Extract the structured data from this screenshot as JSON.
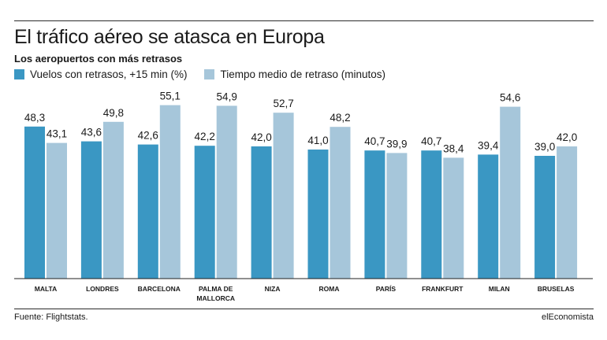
{
  "title": "El tráfico aéreo se atasca en Europa",
  "subtitle": "Los aeropuertos con más retrasos",
  "source": "Fuente: Flightstats.",
  "brand": "elEconomista",
  "colors": {
    "series1": "#3a97c3",
    "series2": "#a6c6da",
    "axis": "#222222"
  },
  "chart_data": {
    "type": "bar",
    "categories": [
      [
        "MALTA"
      ],
      [
        "LONDRES"
      ],
      [
        "BARCELONA"
      ],
      [
        "PALMA DE",
        "MALLORCA"
      ],
      [
        "NIZA"
      ],
      [
        "ROMA"
      ],
      [
        "PARÍS"
      ],
      [
        "FRANKFURT"
      ],
      [
        "MILAN"
      ],
      [
        "BRUSELAS"
      ]
    ],
    "series": [
      {
        "name": "Vuelos con retrasos, +15 min (%)",
        "values": [
          48.3,
          43.6,
          42.6,
          42.2,
          42.0,
          41.0,
          40.7,
          40.7,
          39.4,
          39.0
        ],
        "labels": [
          "48,3",
          "43,6",
          "42,6",
          "42,2",
          "42,0",
          "41,0",
          "40,7",
          "40,7",
          "39,4",
          "39,0"
        ]
      },
      {
        "name": "Tiempo medio de retraso (minutos)",
        "values": [
          43.1,
          49.8,
          55.1,
          54.9,
          52.7,
          48.2,
          39.9,
          38.4,
          54.6,
          42.0
        ],
        "labels": [
          "43,1",
          "49,8",
          "55,1",
          "54,9",
          "52,7",
          "48,2",
          "39,9",
          "38,4",
          "54,6",
          "42,0"
        ]
      }
    ],
    "ylim": [
      0,
      58
    ],
    "grid": false,
    "legend": "top-left"
  }
}
